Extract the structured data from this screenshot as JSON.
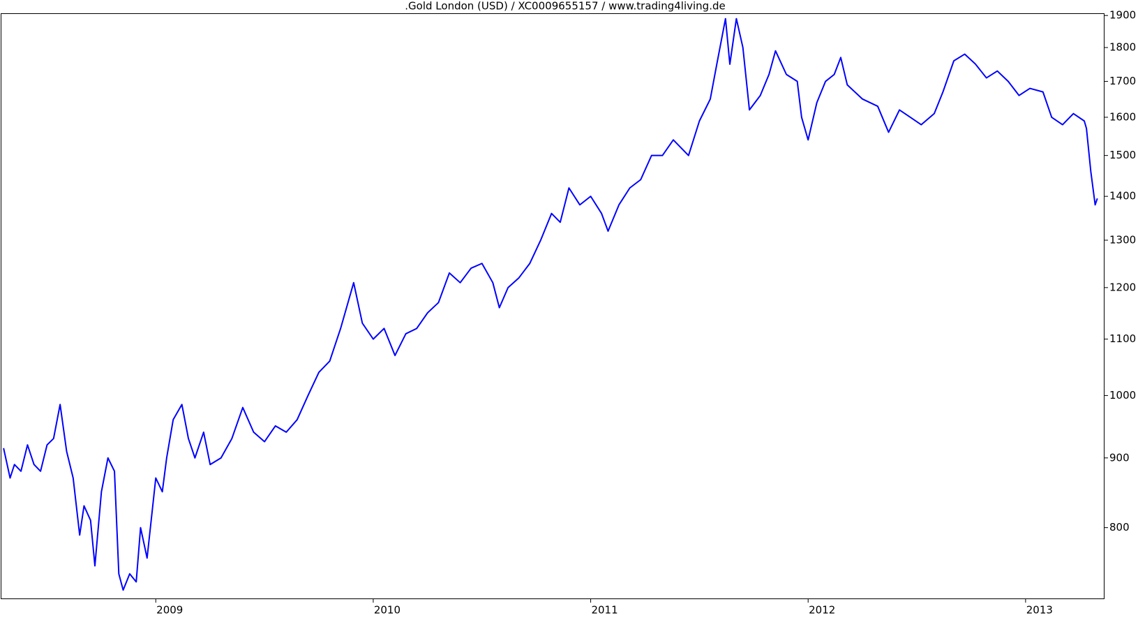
{
  "chart_data": {
    "type": "line",
    "title": ".Gold London (USD) / XC0009655157 / www.trading4living.de",
    "x": [
      2008.3,
      2008.33,
      2008.35,
      2008.38,
      2008.41,
      2008.44,
      2008.47,
      2008.5,
      2008.53,
      2008.56,
      2008.59,
      2008.62,
      2008.65,
      2008.67,
      2008.7,
      2008.72,
      2008.75,
      2008.78,
      2008.81,
      2008.83,
      2008.85,
      2008.88,
      2008.91,
      2008.93,
      2008.96,
      2009.0,
      2009.03,
      2009.05,
      2009.08,
      2009.12,
      2009.15,
      2009.18,
      2009.22,
      2009.25,
      2009.3,
      2009.35,
      2009.4,
      2009.45,
      2009.5,
      2009.55,
      2009.6,
      2009.65,
      2009.7,
      2009.75,
      2009.8,
      2009.85,
      2009.91,
      2009.95,
      2010.0,
      2010.05,
      2010.1,
      2010.15,
      2010.2,
      2010.25,
      2010.3,
      2010.35,
      2010.4,
      2010.45,
      2010.5,
      2010.55,
      2010.58,
      2010.62,
      2010.67,
      2010.72,
      2010.77,
      2010.82,
      2010.86,
      2010.9,
      2010.95,
      2011.0,
      2011.05,
      2011.08,
      2011.13,
      2011.18,
      2011.23,
      2011.28,
      2011.33,
      2011.38,
      2011.45,
      2011.5,
      2011.55,
      2011.58,
      2011.62,
      2011.64,
      2011.67,
      2011.7,
      2011.73,
      2011.78,
      2011.82,
      2011.85,
      2011.9,
      2011.95,
      2011.97,
      2012.0,
      2012.04,
      2012.08,
      2012.12,
      2012.15,
      2012.18,
      2012.25,
      2012.32,
      2012.37,
      2012.42,
      2012.47,
      2012.52,
      2012.58,
      2012.62,
      2012.67,
      2012.72,
      2012.77,
      2012.82,
      2012.87,
      2012.92,
      2012.97,
      2013.02,
      2013.08,
      2013.12,
      2013.17,
      2013.22,
      2013.27,
      2013.28,
      2013.3,
      2013.32,
      2013.33
    ],
    "series": [
      {
        "color": "#0000ff",
        "values": [
          915,
          870,
          890,
          880,
          920,
          890,
          880,
          920,
          930,
          985,
          910,
          870,
          790,
          830,
          810,
          750,
          850,
          900,
          880,
          740,
          720,
          740,
          730,
          800,
          760,
          870,
          850,
          900,
          960,
          985,
          930,
          900,
          940,
          890,
          900,
          930,
          980,
          940,
          925,
          950,
          940,
          960,
          1000,
          1040,
          1060,
          1120,
          1210,
          1130,
          1100,
          1120,
          1070,
          1110,
          1120,
          1150,
          1170,
          1230,
          1210,
          1240,
          1250,
          1210,
          1160,
          1200,
          1220,
          1250,
          1300,
          1360,
          1340,
          1420,
          1380,
          1400,
          1360,
          1320,
          1380,
          1420,
          1440,
          1500,
          1500,
          1540,
          1500,
          1590,
          1650,
          1750,
          1890,
          1750,
          1890,
          1800,
          1620,
          1660,
          1720,
          1790,
          1720,
          1700,
          1600,
          1540,
          1640,
          1700,
          1720,
          1770,
          1690,
          1650,
          1630,
          1560,
          1620,
          1600,
          1580,
          1610,
          1670,
          1760,
          1780,
          1750,
          1710,
          1730,
          1700,
          1660,
          1680,
          1670,
          1600,
          1580,
          1610,
          1590,
          1570,
          1460,
          1380,
          1395
        ]
      }
    ],
    "xlim": [
      2008.29,
      2013.363
    ],
    "xticks": [
      2009,
      2010,
      2011,
      2012,
      2013
    ],
    "ylim": [
      709,
      1905
    ],
    "yticks": [
      800,
      900,
      1000,
      1100,
      1200,
      1300,
      1400,
      1500,
      1600,
      1700,
      1800,
      1900
    ],
    "log_scale": true,
    "grid": false
  }
}
